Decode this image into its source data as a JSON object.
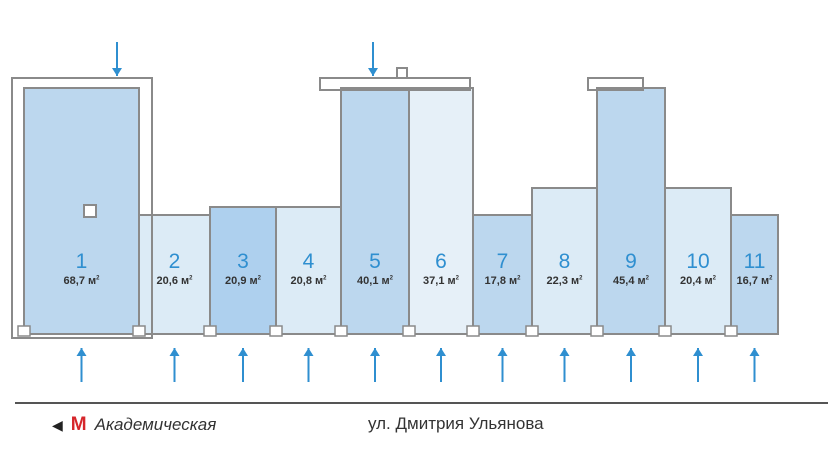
{
  "colors": {
    "room_medium": "#bcd7ee",
    "room_dark": "#aed0ee",
    "room_light": "#dcebf6",
    "room_lightest": "#e6f0f8",
    "wall": "#8a8a8a",
    "accent": "#2f8fd0",
    "metro": "#d6262b"
  },
  "units": [
    {
      "number": "1",
      "area": "68,7 м",
      "shade": "medium"
    },
    {
      "number": "2",
      "area": "20,6 м",
      "shade": "light"
    },
    {
      "number": "3",
      "area": "20,9 м",
      "shade": "dark"
    },
    {
      "number": "4",
      "area": "20,8 м",
      "shade": "light"
    },
    {
      "number": "5",
      "area": "40,1 м",
      "shade": "medium"
    },
    {
      "number": "6",
      "area": "37,1 м",
      "shade": "lightest"
    },
    {
      "number": "7",
      "area": "17,8 м",
      "shade": "medium"
    },
    {
      "number": "8",
      "area": "22,3 м",
      "shade": "light"
    },
    {
      "number": "9",
      "area": "45,4 м",
      "shade": "medium"
    },
    {
      "number": "10",
      "area": "20,4 м",
      "shade": "light"
    },
    {
      "number": "11",
      "area": "16,7 м",
      "shade": "medium"
    }
  ],
  "area_unit_sup": "2",
  "footer": {
    "direction_icon": "arrow-left-icon",
    "metro_logo": "М",
    "metro_station": "Академическая",
    "street": "ул. Дмитрия Ульянова"
  }
}
